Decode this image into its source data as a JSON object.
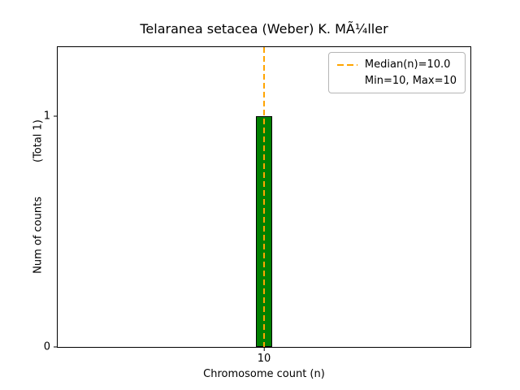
{
  "chart_data": {
    "type": "bar",
    "title": "Telaranea setacea (Weber) K. MÃ¼ller",
    "xlabel": "Chromosome count (n)",
    "ylabel": "Num of counts",
    "ylabel_total": "(Total 1)",
    "categories": [
      "10"
    ],
    "values": [
      1
    ],
    "ylim": [
      0,
      1.3
    ],
    "bar_color": "#008000",
    "bar_edge_color": "#000000",
    "median_line": {
      "x": 10,
      "color": "#ffa500",
      "style": "dashed"
    },
    "y_ticks": [
      {
        "label": "0",
        "value": 0
      },
      {
        "label": "1",
        "value": 1
      }
    ],
    "x_ticks": [
      {
        "label": "10"
      }
    ],
    "legend": {
      "position": "upper right",
      "entries": [
        {
          "label": "Median(n)=10.0",
          "marker": "dashed-line",
          "color": "#ffa500"
        },
        {
          "label": "Min=10, Max=10",
          "marker": "none"
        }
      ]
    },
    "grid": false
  }
}
